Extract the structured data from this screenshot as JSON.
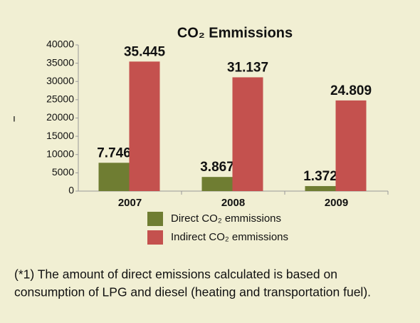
{
  "chart_data": {
    "type": "bar",
    "title": "CO₂ Emmissions",
    "y_label": "ı",
    "categories": [
      "2007",
      "2008",
      "2009"
    ],
    "series": [
      {
        "name": "Direct CO₂ emmissions",
        "color": "#6f7d32",
        "values": [
          7746,
          3867,
          1372
        ],
        "value_labels": [
          "7.746",
          "3.867",
          "1.372"
        ]
      },
      {
        "name": "Indirect CO₂ emmissions",
        "color": "#c4514e",
        "values": [
          35445,
          31137,
          24809
        ],
        "value_labels": [
          "35.445",
          "31.137",
          "24.809"
        ]
      }
    ],
    "ylim": [
      0,
      40000
    ],
    "yticks": [
      0,
      5000,
      10000,
      15000,
      20000,
      25000,
      30000,
      35000,
      40000
    ],
    "grid": false,
    "footnote": [
      "(*1) The amount of direct emissions calculated is based on",
      "consumption of LPG and diesel (heating and transportation fuel)."
    ]
  }
}
